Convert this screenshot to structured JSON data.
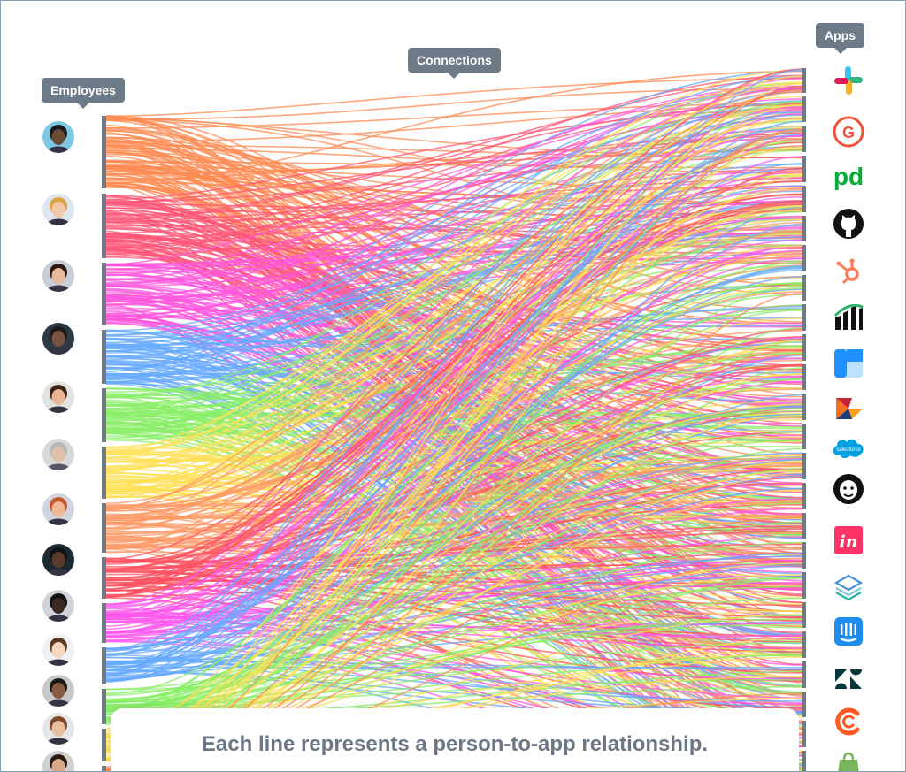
{
  "labels": {
    "employees": "Employees",
    "connections": "Connections",
    "apps": "Apps"
  },
  "caption": "Each line represents a person-to-app relationship.",
  "employees": [
    {
      "id": "employee-1",
      "color": "#ff8a50"
    },
    {
      "id": "employee-2",
      "color": "#ff5577"
    },
    {
      "id": "employee-3",
      "color": "#ff55dd"
    },
    {
      "id": "employee-4",
      "color": "#66aaff"
    },
    {
      "id": "employee-5",
      "color": "#88ee66"
    },
    {
      "id": "employee-6",
      "color": "#ffe055"
    },
    {
      "id": "employee-7",
      "color": "#ff9966"
    },
    {
      "id": "employee-8",
      "color": "#ff5060"
    },
    {
      "id": "employee-9",
      "color": "#ff55ee"
    },
    {
      "id": "employee-10",
      "color": "#66aaff"
    },
    {
      "id": "employee-11",
      "color": "#88ee66"
    },
    {
      "id": "employee-12",
      "color": "#ffe055"
    },
    {
      "id": "employee-13",
      "color": "#ff8a50"
    }
  ],
  "apps": [
    {
      "name": "slack-icon"
    },
    {
      "name": "g2-icon",
      "color": "#f0513b"
    },
    {
      "name": "pagerduty-icon",
      "text": "pd",
      "color": "#06ac38"
    },
    {
      "name": "github-icon",
      "color": "#111111"
    },
    {
      "name": "hubspot-icon",
      "color": "#ff7a59"
    },
    {
      "name": "bar-chart-logo-icon",
      "color": "#111111"
    },
    {
      "name": "board-app-icon",
      "color": "#1e90ff"
    },
    {
      "name": "kite-logo-icon"
    },
    {
      "name": "salesforce-icon",
      "text": "salesforce",
      "color": "#00a1e0"
    },
    {
      "name": "mailchimp-icon",
      "color": "#111111"
    },
    {
      "name": "invision-icon",
      "text": "in",
      "color": "#ff3366"
    },
    {
      "name": "layers-icon",
      "color": "#4a90d9"
    },
    {
      "name": "intercom-icon",
      "color": "#1f8ded"
    },
    {
      "name": "zendesk-icon",
      "color": "#03363d"
    },
    {
      "name": "c-logo-icon",
      "color": "#ff5a1f"
    },
    {
      "name": "shopify-icon",
      "color": "#7ab55c"
    }
  ],
  "colors": {
    "tooltip": "#6d7a87",
    "bar": "#6e7b87",
    "caption_text": "#6b7785"
  }
}
